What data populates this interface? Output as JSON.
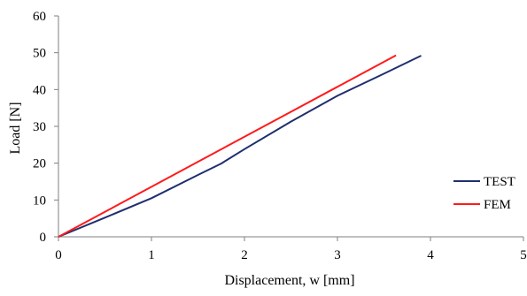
{
  "chart_data": {
    "type": "line",
    "title": "",
    "xlabel": "Displacement,  w [mm]",
    "ylabel": "Load [N]",
    "xlim": [
      0,
      5
    ],
    "ylim": [
      0,
      60
    ],
    "x_ticks": [
      "0",
      "1",
      "2",
      "3",
      "4",
      "5"
    ],
    "y_ticks": [
      "0",
      "10",
      "20",
      "30",
      "40",
      "50",
      "60"
    ],
    "grid": false,
    "legend_position": "right",
    "series": [
      {
        "name": "TEST",
        "color": "#1f2f6e",
        "x": [
          0,
          0.5,
          1.0,
          1.5,
          1.75,
          2.0,
          2.5,
          3.0,
          3.5,
          3.9
        ],
        "y": [
          0,
          5.2,
          10.5,
          16.8,
          19.9,
          23.8,
          31.3,
          38.3,
          44.3,
          49.2
        ]
      },
      {
        "name": "FEM",
        "color": "#ff1a1a",
        "x": [
          0,
          3.63
        ],
        "y": [
          0,
          49.3
        ]
      }
    ]
  }
}
